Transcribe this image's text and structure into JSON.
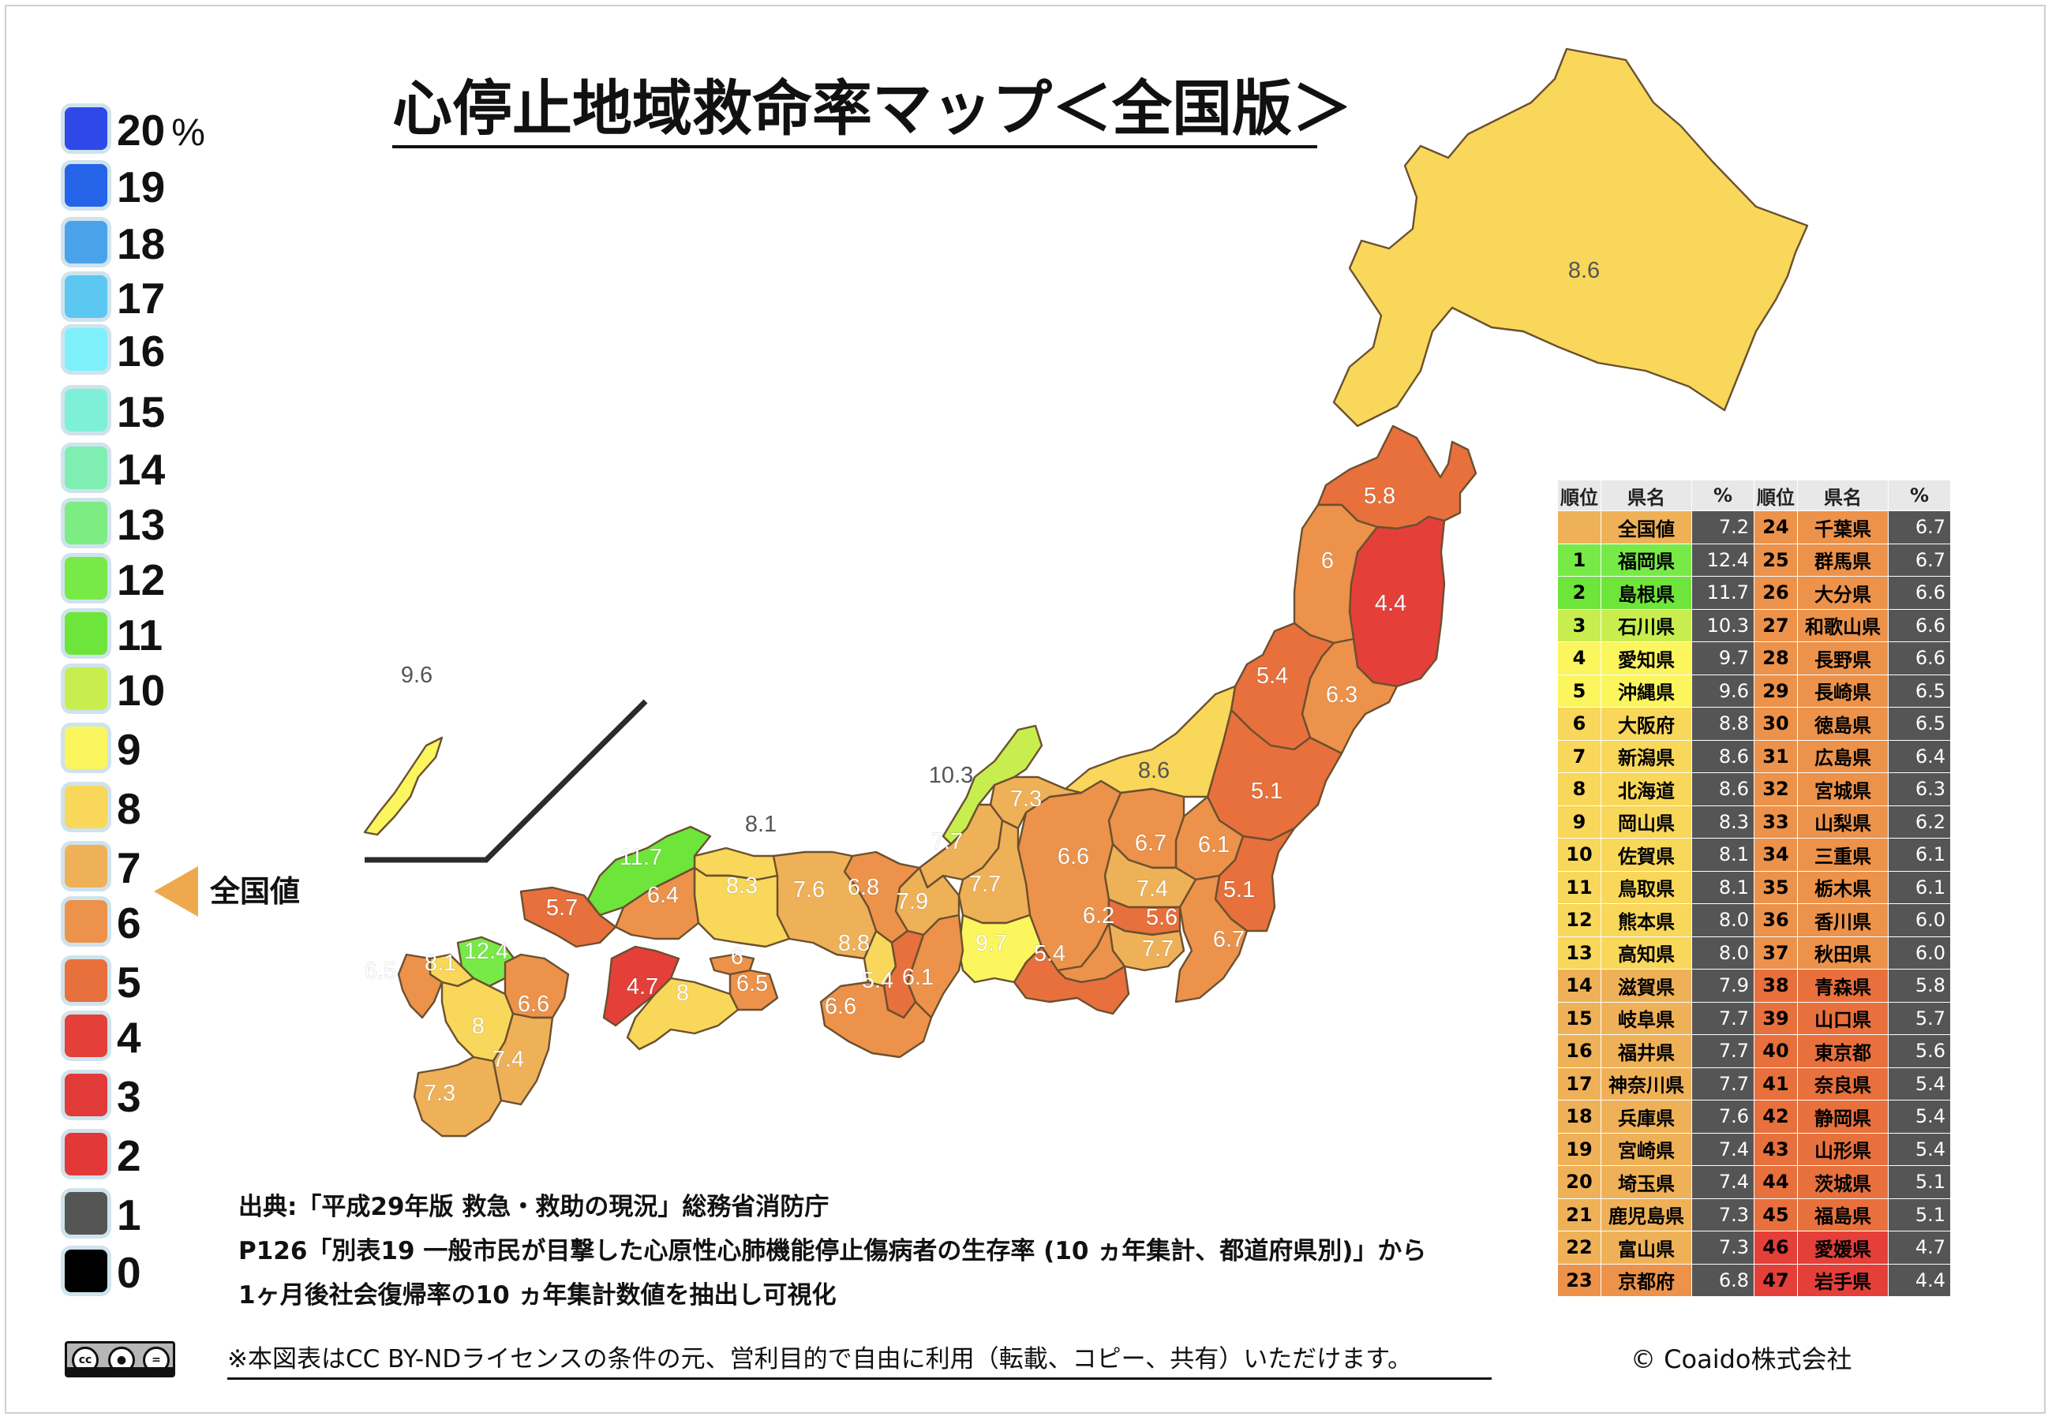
{
  "title": "心停止地域救命率マップ＜全国版＞",
  "legend": {
    "unit": "%",
    "national_label": "全国値",
    "national_value": 7.2,
    "items": [
      {
        "label": "20",
        "color": "#2f49e8"
      },
      {
        "label": "19",
        "color": "#2563e8"
      },
      {
        "label": "18",
        "color": "#4aa3ea"
      },
      {
        "label": "17",
        "color": "#5cc8f2"
      },
      {
        "label": "16",
        "color": "#7ef0fb"
      },
      {
        "label": "15",
        "color": "#7ff0d8"
      },
      {
        "label": "14",
        "color": "#7eefb0"
      },
      {
        "label": "13",
        "color": "#7ded83"
      },
      {
        "label": "12",
        "color": "#78ea48"
      },
      {
        "label": "11",
        "color": "#6ee53a"
      },
      {
        "label": "10",
        "color": "#c7ee4e"
      },
      {
        "label": "9",
        "color": "#fbf55e"
      },
      {
        "label": "8",
        "color": "#f8d75a"
      },
      {
        "label": "7",
        "color": "#efb157"
      },
      {
        "label": "6",
        "color": "#ec924a"
      },
      {
        "label": "5",
        "color": "#e8703c"
      },
      {
        "label": "4",
        "color": "#e43f39"
      },
      {
        "label": "3",
        "color": "#e23a38"
      },
      {
        "label": "2",
        "color": "#e23838"
      },
      {
        "label": "1",
        "color": "#555555"
      },
      {
        "label": "0",
        "color": "#000000"
      }
    ]
  },
  "map": {
    "prefectures": [
      {
        "name": "北海道",
        "value": "8.6",
        "color": "#f8d75a"
      },
      {
        "name": "青森県",
        "value": "5.8",
        "color": "#e8703c"
      },
      {
        "name": "岩手県",
        "value": "4.4",
        "color": "#e43f39"
      },
      {
        "name": "秋田県",
        "value": "6",
        "color": "#ec924a"
      },
      {
        "name": "宮城県",
        "value": "6.3",
        "color": "#ec924a"
      },
      {
        "name": "山形県",
        "value": "5.4",
        "color": "#e8703c"
      },
      {
        "name": "福島県",
        "value": "5.1",
        "color": "#e8703c"
      },
      {
        "name": "新潟県",
        "value": "8.6",
        "color": "#f8d75a"
      },
      {
        "name": "栃木県",
        "value": "6.1",
        "color": "#ec924a"
      },
      {
        "name": "茨城県",
        "value": "5.1",
        "color": "#e8703c"
      },
      {
        "name": "群馬県",
        "value": "6.7",
        "color": "#ec924a"
      },
      {
        "name": "長野県",
        "value": "6.6",
        "color": "#ec924a"
      },
      {
        "name": "埼玉県",
        "value": "7.4",
        "color": "#efb157"
      },
      {
        "name": "東京都",
        "value": "5.6",
        "color": "#e8703c"
      },
      {
        "name": "千葉県",
        "value": "6.7",
        "color": "#ec924a"
      },
      {
        "name": "神奈川県",
        "value": "7.7",
        "color": "#efb157"
      },
      {
        "name": "山梨県",
        "value": "6.2",
        "color": "#ec924a"
      },
      {
        "name": "静岡県",
        "value": "5.4",
        "color": "#e8703c"
      },
      {
        "name": "富山県",
        "value": "7.3",
        "color": "#efb157"
      },
      {
        "name": "石川県",
        "value": "10.3",
        "color": "#c7ee4e"
      },
      {
        "name": "福井県",
        "value": "7.7",
        "color": "#efb157"
      },
      {
        "name": "岐阜県",
        "value": "7.7",
        "color": "#efb157"
      },
      {
        "name": "愛知県",
        "value": "9.7",
        "color": "#fbf55e"
      },
      {
        "name": "三重県",
        "value": "6.1",
        "color": "#ec924a"
      },
      {
        "name": "滋賀県",
        "value": "7.9",
        "color": "#efb157"
      },
      {
        "name": "京都府",
        "value": "6.8",
        "color": "#ec924a"
      },
      {
        "name": "大阪府",
        "value": "8.8",
        "color": "#f8d75a"
      },
      {
        "name": "兵庫県",
        "value": "7.6",
        "color": "#efb157"
      },
      {
        "name": "奈良県",
        "value": "5.4",
        "color": "#e8703c"
      },
      {
        "name": "和歌山県",
        "value": "6.6",
        "color": "#ec924a"
      },
      {
        "name": "鳥取県",
        "value": "8.1",
        "color": "#f8d75a"
      },
      {
        "name": "島根県",
        "value": "11.7",
        "color": "#6ee53a"
      },
      {
        "name": "岡山県",
        "value": "8.3",
        "color": "#f8d75a"
      },
      {
        "name": "広島県",
        "value": "6.4",
        "color": "#ec924a"
      },
      {
        "name": "山口県",
        "value": "5.7",
        "color": "#e8703c"
      },
      {
        "name": "徳島県",
        "value": "6.5",
        "color": "#ec924a"
      },
      {
        "name": "香川県",
        "value": "6",
        "color": "#ec924a"
      },
      {
        "name": "愛媛県",
        "value": "4.7",
        "color": "#e43f39"
      },
      {
        "name": "高知県",
        "value": "8",
        "color": "#f8d75a"
      },
      {
        "name": "福岡県",
        "value": "12.4",
        "color": "#78ea48"
      },
      {
        "name": "佐賀県",
        "value": "8.1",
        "color": "#f8d75a"
      },
      {
        "name": "長崎県",
        "value": "6.5",
        "color": "#ec924a"
      },
      {
        "name": "熊本県",
        "value": "8",
        "color": "#f8d75a"
      },
      {
        "name": "大分県",
        "value": "6.6",
        "color": "#ec924a"
      },
      {
        "name": "宮崎県",
        "value": "7.4",
        "color": "#efb157"
      },
      {
        "name": "鹿児島県",
        "value": "7.3",
        "color": "#efb157"
      },
      {
        "name": "沖縄県",
        "value": "9.6",
        "color": "#fbf55e"
      }
    ]
  },
  "ranking": {
    "headers": [
      "順位",
      "県名",
      "%",
      "順位",
      "県名",
      "%"
    ],
    "rows": [
      {
        "l_rank": "",
        "l_name": "全国値",
        "l_pct": "7.2",
        "l_color": "#efb157",
        "r_rank": "24",
        "r_name": "千葉県",
        "r_pct": "6.7",
        "r_color": "#ec924a"
      },
      {
        "l_rank": "1",
        "l_name": "福岡県",
        "l_pct": "12.4",
        "l_color": "#78ea48",
        "r_rank": "25",
        "r_name": "群馬県",
        "r_pct": "6.7",
        "r_color": "#ec924a"
      },
      {
        "l_rank": "2",
        "l_name": "島根県",
        "l_pct": "11.7",
        "l_color": "#6ee53a",
        "r_rank": "26",
        "r_name": "大分県",
        "r_pct": "6.6",
        "r_color": "#ec924a"
      },
      {
        "l_rank": "3",
        "l_name": "石川県",
        "l_pct": "10.3",
        "l_color": "#c7ee4e",
        "r_rank": "27",
        "r_name": "和歌山県",
        "r_pct": "6.6",
        "r_color": "#ec924a"
      },
      {
        "l_rank": "4",
        "l_name": "愛知県",
        "l_pct": "9.7",
        "l_color": "#fbf55e",
        "r_rank": "28",
        "r_name": "長野県",
        "r_pct": "6.6",
        "r_color": "#ec924a"
      },
      {
        "l_rank": "5",
        "l_name": "沖縄県",
        "l_pct": "9.6",
        "l_color": "#fbf55e",
        "r_rank": "29",
        "r_name": "長崎県",
        "r_pct": "6.5",
        "r_color": "#ec924a"
      },
      {
        "l_rank": "6",
        "l_name": "大阪府",
        "l_pct": "8.8",
        "l_color": "#f8d75a",
        "r_rank": "30",
        "r_name": "徳島県",
        "r_pct": "6.5",
        "r_color": "#ec924a"
      },
      {
        "l_rank": "7",
        "l_name": "新潟県",
        "l_pct": "8.6",
        "l_color": "#f8d75a",
        "r_rank": "31",
        "r_name": "広島県",
        "r_pct": "6.4",
        "r_color": "#ec924a"
      },
      {
        "l_rank": "8",
        "l_name": "北海道",
        "l_pct": "8.6",
        "l_color": "#f8d75a",
        "r_rank": "32",
        "r_name": "宮城県",
        "r_pct": "6.3",
        "r_color": "#ec924a"
      },
      {
        "l_rank": "9",
        "l_name": "岡山県",
        "l_pct": "8.3",
        "l_color": "#f8d75a",
        "r_rank": "33",
        "r_name": "山梨県",
        "r_pct": "6.2",
        "r_color": "#ec924a"
      },
      {
        "l_rank": "10",
        "l_name": "佐賀県",
        "l_pct": "8.1",
        "l_color": "#f8d75a",
        "r_rank": "34",
        "r_name": "三重県",
        "r_pct": "6.1",
        "r_color": "#ec924a"
      },
      {
        "l_rank": "11",
        "l_name": "鳥取県",
        "l_pct": "8.1",
        "l_color": "#f8d75a",
        "r_rank": "35",
        "r_name": "栃木県",
        "r_pct": "6.1",
        "r_color": "#ec924a"
      },
      {
        "l_rank": "12",
        "l_name": "熊本県",
        "l_pct": "8.0",
        "l_color": "#f8d75a",
        "r_rank": "36",
        "r_name": "香川県",
        "r_pct": "6.0",
        "r_color": "#ec924a"
      },
      {
        "l_rank": "13",
        "l_name": "高知県",
        "l_pct": "8.0",
        "l_color": "#f8d75a",
        "r_rank": "37",
        "r_name": "秋田県",
        "r_pct": "6.0",
        "r_color": "#ec924a"
      },
      {
        "l_rank": "14",
        "l_name": "滋賀県",
        "l_pct": "7.9",
        "l_color": "#efb157",
        "r_rank": "38",
        "r_name": "青森県",
        "r_pct": "5.8",
        "r_color": "#e8703c"
      },
      {
        "l_rank": "15",
        "l_name": "岐阜県",
        "l_pct": "7.7",
        "l_color": "#efb157",
        "r_rank": "39",
        "r_name": "山口県",
        "r_pct": "5.7",
        "r_color": "#e8703c"
      },
      {
        "l_rank": "16",
        "l_name": "福井県",
        "l_pct": "7.7",
        "l_color": "#efb157",
        "r_rank": "40",
        "r_name": "東京都",
        "r_pct": "5.6",
        "r_color": "#e8703c"
      },
      {
        "l_rank": "17",
        "l_name": "神奈川県",
        "l_pct": "7.7",
        "l_color": "#efb157",
        "r_rank": "41",
        "r_name": "奈良県",
        "r_pct": "5.4",
        "r_color": "#e8703c"
      },
      {
        "l_rank": "18",
        "l_name": "兵庫県",
        "l_pct": "7.6",
        "l_color": "#efb157",
        "r_rank": "42",
        "r_name": "静岡県",
        "r_pct": "5.4",
        "r_color": "#e8703c"
      },
      {
        "l_rank": "19",
        "l_name": "宮崎県",
        "l_pct": "7.4",
        "l_color": "#efb157",
        "r_rank": "43",
        "r_name": "山形県",
        "r_pct": "5.4",
        "r_color": "#e8703c"
      },
      {
        "l_rank": "20",
        "l_name": "埼玉県",
        "l_pct": "7.4",
        "l_color": "#efb157",
        "r_rank": "44",
        "r_name": "茨城県",
        "r_pct": "5.1",
        "r_color": "#e8703c"
      },
      {
        "l_rank": "21",
        "l_name": "鹿児島県",
        "l_pct": "7.3",
        "l_color": "#efb157",
        "r_rank": "45",
        "r_name": "福島県",
        "r_pct": "5.1",
        "r_color": "#e8703c"
      },
      {
        "l_rank": "22",
        "l_name": "富山県",
        "l_pct": "7.3",
        "l_color": "#efb157",
        "r_rank": "46",
        "r_name": "愛媛県",
        "r_pct": "4.7",
        "r_color": "#e43f39"
      },
      {
        "l_rank": "23",
        "l_name": "京都府",
        "l_pct": "6.8",
        "l_color": "#ec924a",
        "r_rank": "47",
        "r_name": "岩手県",
        "r_pct": "4.4",
        "r_color": "#e43f39"
      }
    ]
  },
  "source": {
    "line1": "出典:「平成29年版 救急・救助の現況」総務省消防庁",
    "line2": "P126「別表19 一般市民が目撃した心原性心肺機能停止傷病者の生存率 (10 ヵ年集計、都道府県別)」から",
    "line3": "1ヶ月後社会復帰率の10 ヵ年集計数値を抽出し可視化"
  },
  "footer": {
    "license_note": "※本図表はCC BY-NDライセンスの条件の元、営利目的で自由に利用（転載、コピー、共有）いただけます。",
    "copyright": "© Coaido株式会社",
    "cc_badge": {
      "cc": "cc",
      "by": "BY",
      "nd": "ND"
    }
  }
}
